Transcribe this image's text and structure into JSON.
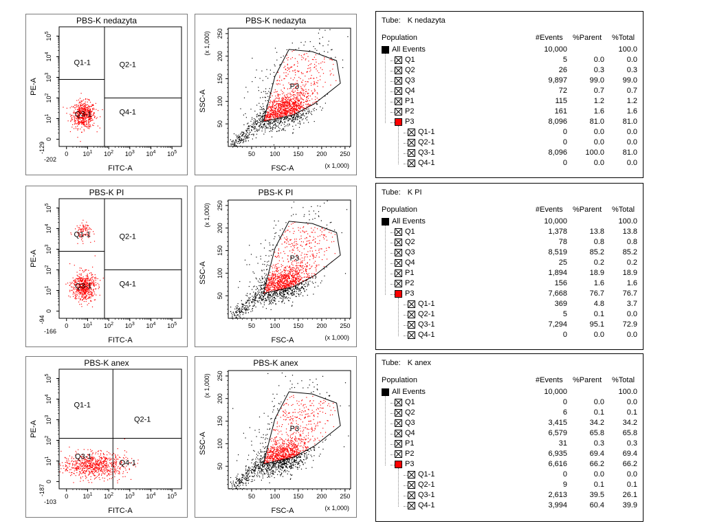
{
  "chart_data": [
    {
      "sample": "PBS-K nedazyta",
      "quadrant_plot": {
        "type": "scatter",
        "title": "PBS-K nedazyta",
        "xlabel": "FITC-A",
        "ylabel": "PE-A",
        "x_min_label": "-202",
        "y_min_label": "-129",
        "gates": [
          "Q1-1",
          "Q2-1",
          "Q3-1",
          "Q4-1"
        ],
        "clusters": [
          {
            "x": 0.8,
            "y": 1.2,
            "spread": [
              0.28,
              0.32
            ],
            "count": 550
          }
        ]
      },
      "scatter_plot": {
        "type": "scatter",
        "title": "PBS-K nedazyta",
        "xlabel": "FSC-A",
        "ylabel": "SSC-A",
        "axis_scale": "(x 1,000)",
        "xlim": [
          0,
          262
        ],
        "ylim": [
          0,
          262
        ],
        "x_ticks": [
          "50",
          "100",
          "150",
          "200",
          "250"
        ],
        "y_ticks": [
          "50",
          "100",
          "150",
          "200",
          "250"
        ],
        "gate_label": "P3",
        "gate_polygon": [
          [
            75,
            55
          ],
          [
            140,
            70
          ],
          [
            185,
            95
          ],
          [
            240,
            140
          ],
          [
            232,
            190
          ],
          [
            180,
            210
          ],
          [
            130,
            215
          ],
          [
            100,
            155
          ]
        ],
        "cloud_center": [
          120,
          80
        ]
      },
      "table": {
        "tube_prefix": "Tube:",
        "tube_name": "K nedazyta",
        "headers": [
          "Population",
          "#Events",
          "%Parent",
          "%Total"
        ],
        "rows": [
          {
            "name": "All Events",
            "events": "10,000",
            "parent": "",
            "total": "100.0"
          },
          {
            "name": "Q1",
            "events": "5",
            "parent": "0.0",
            "total": "0.0"
          },
          {
            "name": "Q2",
            "events": "26",
            "parent": "0.3",
            "total": "0.3"
          },
          {
            "name": "Q3",
            "events": "9,897",
            "parent": "99.0",
            "total": "99.0"
          },
          {
            "name": "Q4",
            "events": "72",
            "parent": "0.7",
            "total": "0.7"
          },
          {
            "name": "P1",
            "events": "115",
            "parent": "1.2",
            "total": "1.2"
          },
          {
            "name": "P2",
            "events": "161",
            "parent": "1.6",
            "total": "1.6"
          },
          {
            "name": "P3",
            "events": "8,096",
            "parent": "81.0",
            "total": "81.0"
          },
          {
            "name": "Q1-1",
            "events": "0",
            "parent": "0.0",
            "total": "0.0"
          },
          {
            "name": "Q2-1",
            "events": "0",
            "parent": "0.0",
            "total": "0.0"
          },
          {
            "name": "Q3-1",
            "events": "8,096",
            "parent": "100.0",
            "total": "81.0"
          },
          {
            "name": "Q4-1",
            "events": "0",
            "parent": "0.0",
            "total": "0.0"
          }
        ]
      }
    },
    {
      "sample": "PBS-K PI",
      "quadrant_plot": {
        "type": "scatter",
        "title": "PBS-K PI",
        "xlabel": "FITC-A",
        "ylabel": "PE-A",
        "x_min_label": "-166",
        "y_min_label": "-94",
        "gates": [
          "Q1-1",
          "Q2-1",
          "Q3-1",
          "Q4-1"
        ],
        "clusters": [
          {
            "x": 0.8,
            "y": 1.2,
            "spread": [
              0.28,
              0.35
            ],
            "count": 550
          },
          {
            "x": 0.8,
            "y": 3.9,
            "spread": [
              0.22,
              0.22
            ],
            "count": 90
          }
        ]
      },
      "scatter_plot": {
        "type": "scatter",
        "title": "PBS-K PI",
        "xlabel": "FSC-A",
        "ylabel": "SSC-A",
        "axis_scale": "(x 1,000)",
        "xlim": [
          0,
          262
        ],
        "ylim": [
          0,
          262
        ],
        "x_ticks": [
          "50",
          "100",
          "150",
          "200",
          "250"
        ],
        "y_ticks": [
          "50",
          "100",
          "150",
          "200",
          "250"
        ],
        "gate_label": "P3",
        "gate_polygon": [
          [
            75,
            55
          ],
          [
            140,
            70
          ],
          [
            185,
            95
          ],
          [
            240,
            140
          ],
          [
            232,
            190
          ],
          [
            180,
            210
          ],
          [
            130,
            215
          ],
          [
            100,
            155
          ]
        ],
        "cloud_center": [
          118,
          78
        ]
      },
      "table": {
        "tube_prefix": "Tube:",
        "tube_name": "K PI",
        "headers": [
          "Population",
          "#Events",
          "%Parent",
          "%Total"
        ],
        "rows": [
          {
            "name": "All Events",
            "events": "10,000",
            "parent": "",
            "total": "100.0"
          },
          {
            "name": "Q1",
            "events": "1,378",
            "parent": "13.8",
            "total": "13.8"
          },
          {
            "name": "Q2",
            "events": "78",
            "parent": "0.8",
            "total": "0.8"
          },
          {
            "name": "Q3",
            "events": "8,519",
            "parent": "85.2",
            "total": "85.2"
          },
          {
            "name": "Q4",
            "events": "25",
            "parent": "0.2",
            "total": "0.2"
          },
          {
            "name": "P1",
            "events": "1,894",
            "parent": "18.9",
            "total": "18.9"
          },
          {
            "name": "P2",
            "events": "156",
            "parent": "1.6",
            "total": "1.6"
          },
          {
            "name": "P3",
            "events": "7,668",
            "parent": "76.7",
            "total": "76.7"
          },
          {
            "name": "Q1-1",
            "events": "369",
            "parent": "4.8",
            "total": "3.7"
          },
          {
            "name": "Q2-1",
            "events": "5",
            "parent": "0.1",
            "total": "0.0"
          },
          {
            "name": "Q3-1",
            "events": "7,294",
            "parent": "95.1",
            "total": "72.9"
          },
          {
            "name": "Q4-1",
            "events": "0",
            "parent": "0.0",
            "total": "0.0"
          }
        ]
      }
    },
    {
      "sample": "PBS-K anex",
      "quadrant_plot": {
        "type": "scatter",
        "title": "PBS-K anex",
        "xlabel": "FITC-A",
        "ylabel": "PE-A",
        "x_min_label": "-103",
        "y_min_label": "-187",
        "gates": [
          "Q1-1",
          "Q2-1",
          "Q3-1",
          "Q4-1"
        ],
        "clusters": [
          {
            "x": 1.3,
            "y": 0.8,
            "spread": [
              0.75,
              0.3
            ],
            "count": 750
          }
        ]
      },
      "scatter_plot": {
        "type": "scatter",
        "title": "PBS-K anex",
        "xlabel": "FSC-A",
        "ylabel": "SSC-A",
        "axis_scale": "(x 1,000)",
        "xlim": [
          0,
          262
        ],
        "ylim": [
          0,
          262
        ],
        "x_ticks": [
          "50",
          "100",
          "150",
          "200",
          "250"
        ],
        "y_ticks": [
          "50",
          "100",
          "150",
          "200",
          "250"
        ],
        "gate_label": "P3",
        "gate_polygon": [
          [
            75,
            55
          ],
          [
            140,
            70
          ],
          [
            185,
            95
          ],
          [
            240,
            140
          ],
          [
            232,
            190
          ],
          [
            180,
            210
          ],
          [
            130,
            215
          ],
          [
            100,
            155
          ]
        ],
        "cloud_center": [
          115,
          72
        ]
      },
      "table": {
        "tube_prefix": "Tube:",
        "tube_name": "K anex",
        "headers": [
          "Population",
          "#Events",
          "%Parent",
          "%Total"
        ],
        "rows": [
          {
            "name": "All Events",
            "events": "10,000",
            "parent": "",
            "total": "100.0"
          },
          {
            "name": "Q1",
            "events": "0",
            "parent": "0.0",
            "total": "0.0"
          },
          {
            "name": "Q2",
            "events": "6",
            "parent": "0.1",
            "total": "0.1"
          },
          {
            "name": "Q3",
            "events": "3,415",
            "parent": "34.2",
            "total": "34.2"
          },
          {
            "name": "Q4",
            "events": "6,579",
            "parent": "65.8",
            "total": "65.8"
          },
          {
            "name": "P1",
            "events": "31",
            "parent": "0.3",
            "total": "0.3"
          },
          {
            "name": "P2",
            "events": "6,935",
            "parent": "69.4",
            "total": "69.4"
          },
          {
            "name": "P3",
            "events": "6,616",
            "parent": "66.2",
            "total": "66.2"
          },
          {
            "name": "Q1-1",
            "events": "0",
            "parent": "0.0",
            "total": "0.0"
          },
          {
            "name": "Q2-1",
            "events": "9",
            "parent": "0.1",
            "total": "0.1"
          },
          {
            "name": "Q3-1",
            "events": "2,613",
            "parent": "39.5",
            "total": "26.1"
          },
          {
            "name": "Q4-1",
            "events": "3,994",
            "parent": "60.4",
            "total": "39.9"
          }
        ]
      }
    }
  ],
  "colors": {
    "gated_dots": "#ff0000",
    "ungated_dots": "#000000",
    "all_events_box": "#000000",
    "p3_box": "#ff0000"
  }
}
